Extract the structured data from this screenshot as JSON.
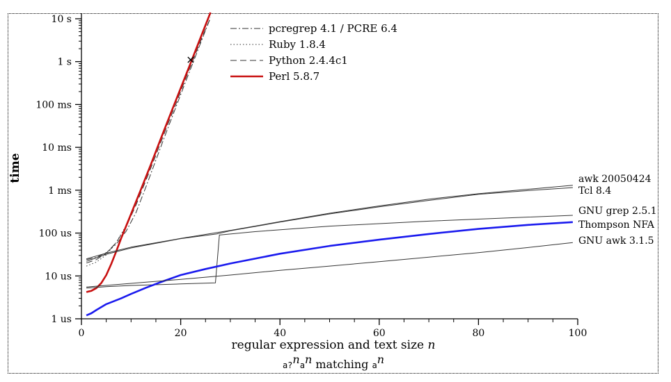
{
  "chart_data": {
    "type": "line",
    "ylabel": "time",
    "xlabel": "regular expression and text size n",
    "xlabel_parts": {
      "text": "regular expression and text size",
      "var": "n"
    },
    "caption": {
      "pre": "a?",
      "sup1": "n",
      "mid": "a",
      "sup2": "n",
      "text": "matching",
      "post": "a",
      "sup3": "n"
    },
    "xlim": [
      0,
      100
    ],
    "x_ticks": [
      {
        "value": 0,
        "label": "0"
      },
      {
        "value": 20,
        "label": "20"
      },
      {
        "value": 40,
        "label": "40"
      },
      {
        "value": 60,
        "label": "60"
      },
      {
        "value": 80,
        "label": "80"
      },
      {
        "value": 100,
        "label": "100"
      }
    ],
    "y_scale": "log",
    "ylim_seconds": [
      1e-06,
      10
    ],
    "y_ticks": [
      {
        "value": 10,
        "label": "10 s"
      },
      {
        "value": 1,
        "label": "1 s"
      },
      {
        "value": 0.1,
        "label": "100 ms"
      },
      {
        "value": 0.01,
        "label": "10 ms"
      },
      {
        "value": 0.001,
        "label": "1 ms"
      },
      {
        "value": 0.0001,
        "label": "100 us"
      },
      {
        "value": 1e-05,
        "label": "10 us"
      },
      {
        "value": 1e-06,
        "label": "1 us"
      }
    ],
    "legend_position": "top-center",
    "series": [
      {
        "name": "pcregrep 4.1 / PCRE 6.4",
        "in_legend": true,
        "color": "#333333",
        "width": 1,
        "dash": "9,3,2,3",
        "points": [
          [
            1,
            2.4e-05
          ],
          [
            3,
            2.7e-05
          ],
          [
            5,
            3.5e-05
          ],
          [
            7,
            5.5e-05
          ],
          [
            9,
            0.00011
          ],
          [
            11,
            0.0003
          ],
          [
            13,
            0.0012
          ],
          [
            15,
            0.005
          ],
          [
            17,
            0.021
          ],
          [
            19,
            0.085
          ],
          [
            21,
            0.34
          ],
          [
            23,
            1.35
          ],
          [
            25,
            5.4
          ],
          [
            26,
            10.5
          ]
        ]
      },
      {
        "name": "Ruby 1.8.4",
        "in_legend": true,
        "color": "#333333",
        "width": 1,
        "dash": "1.5,3",
        "points": [
          [
            1,
            1.7e-05
          ],
          [
            3,
            2.1e-05
          ],
          [
            5,
            3.1e-05
          ],
          [
            7,
            6e-05
          ],
          [
            9,
            0.00015
          ],
          [
            11,
            0.0005
          ],
          [
            13,
            0.002
          ],
          [
            15,
            0.0075
          ],
          [
            17,
            0.03
          ],
          [
            19,
            0.12
          ],
          [
            21,
            0.45
          ],
          [
            23,
            1.7
          ],
          [
            25,
            6.5
          ],
          [
            25.6,
            10
          ]
        ]
      },
      {
        "name": "Python 2.4.4c1",
        "in_legend": true,
        "color": "#333333",
        "width": 1,
        "dash": "9,5",
        "points": [
          [
            1,
            2e-05
          ],
          [
            3,
            2.4e-05
          ],
          [
            5,
            3.4e-05
          ],
          [
            7,
            6e-05
          ],
          [
            9,
            0.00014
          ],
          [
            11,
            0.00045
          ],
          [
            13,
            0.0017
          ],
          [
            15,
            0.0065
          ],
          [
            17,
            0.026
          ],
          [
            19,
            0.1
          ],
          [
            21,
            0.4
          ],
          [
            22,
            0.8
          ],
          [
            24,
            3
          ],
          [
            26,
            10.5
          ]
        ]
      },
      {
        "name": "Perl 5.8.7",
        "in_legend": true,
        "color": "#c81010",
        "width": 2.6,
        "dash": "",
        "points": [
          [
            1,
            4.2e-06
          ],
          [
            2,
            4.5e-06
          ],
          [
            3,
            5.2e-06
          ],
          [
            4,
            6.8e-06
          ],
          [
            5,
            1.05e-05
          ],
          [
            6,
            1.9e-05
          ],
          [
            7,
            3.7e-05
          ],
          [
            8,
            7.5e-05
          ],
          [
            10,
            0.00028
          ],
          [
            12,
            0.00105
          ],
          [
            14,
            0.004
          ],
          [
            16,
            0.016
          ],
          [
            18,
            0.062
          ],
          [
            20,
            0.24
          ],
          [
            22,
            0.93
          ],
          [
            24,
            3.6
          ],
          [
            26,
            14
          ]
        ]
      },
      {
        "name": "awk 20050424",
        "in_legend": false,
        "color": "#333333",
        "width": 1,
        "dash": "",
        "points": [
          [
            1,
            2.5e-05
          ],
          [
            5,
            3.4e-05
          ],
          [
            10,
            4.7e-05
          ],
          [
            20,
            7.5e-05
          ],
          [
            30,
            0.000115
          ],
          [
            40,
            0.000185
          ],
          [
            50,
            0.00029
          ],
          [
            60,
            0.00043
          ],
          [
            70,
            0.00062
          ],
          [
            80,
            0.00083
          ],
          [
            90,
            0.00105
          ],
          [
            99,
            0.0013
          ]
        ]
      },
      {
        "name": "Tcl 8.4",
        "in_legend": false,
        "color": "#333333",
        "width": 1,
        "dash": "",
        "points": [
          [
            1,
            2.2e-05
          ],
          [
            5,
            3.2e-05
          ],
          [
            10,
            4.5e-05
          ],
          [
            20,
            7.4e-05
          ],
          [
            27.2,
            9.5e-05
          ],
          [
            30,
            0.000113
          ],
          [
            40,
            0.00018
          ],
          [
            50,
            0.00028
          ],
          [
            60,
            0.00041
          ],
          [
            70,
            0.00058
          ],
          [
            80,
            0.0008
          ],
          [
            90,
            0.00098
          ],
          [
            99,
            0.00115
          ]
        ]
      },
      {
        "name": "GNU grep 2.5.1",
        "in_legend": false,
        "color": "#333333",
        "width": 1,
        "dash": "",
        "points": [
          [
            1,
            5.2e-06
          ],
          [
            5,
            5.6e-06
          ],
          [
            10,
            6e-06
          ],
          [
            20,
            6.5e-06
          ],
          [
            27,
            6.9e-06
          ],
          [
            27.8,
            9e-05
          ],
          [
            35,
            0.000108
          ],
          [
            50,
            0.000145
          ],
          [
            70,
            0.00019
          ],
          [
            99,
            0.00026
          ]
        ]
      },
      {
        "name": "Thompson NFA",
        "in_legend": false,
        "color": "#1a1aee",
        "width": 2.6,
        "dash": "",
        "points": [
          [
            1,
            1.2e-06
          ],
          [
            2,
            1.35e-06
          ],
          [
            3,
            1.6e-06
          ],
          [
            5,
            2.2e-06
          ],
          [
            8,
            3e-06
          ],
          [
            10,
            3.8e-06
          ],
          [
            13,
            5.3e-06
          ],
          [
            16,
            7.2e-06
          ],
          [
            20,
            1.05e-05
          ],
          [
            25,
            1.45e-05
          ],
          [
            30,
            1.95e-05
          ],
          [
            40,
            3.3e-05
          ],
          [
            50,
            5e-05
          ],
          [
            60,
            7e-05
          ],
          [
            70,
            9.5e-05
          ],
          [
            80,
            0.000125
          ],
          [
            90,
            0.000155
          ],
          [
            99,
            0.00018
          ]
        ]
      },
      {
        "name": "GNU awk 3.1.5",
        "in_legend": false,
        "color": "#333333",
        "width": 1,
        "dash": "",
        "points": [
          [
            1,
            5.5e-06
          ],
          [
            10,
            6.7e-06
          ],
          [
            20,
            8.3e-06
          ],
          [
            30,
            1.05e-05
          ],
          [
            40,
            1.35e-05
          ],
          [
            50,
            1.7e-05
          ],
          [
            60,
            2.15e-05
          ],
          [
            70,
            2.75e-05
          ],
          [
            80,
            3.5e-05
          ],
          [
            90,
            4.6e-05
          ],
          [
            99,
            6e-05
          ]
        ]
      }
    ],
    "markers": [
      {
        "shape": "x",
        "x": 22,
        "y": 1.1
      }
    ]
  }
}
